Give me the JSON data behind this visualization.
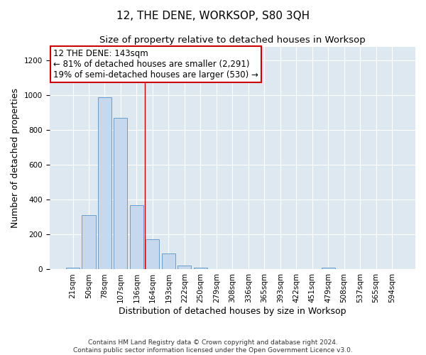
{
  "title": "12, THE DENE, WORKSOP, S80 3QH",
  "subtitle": "Size of property relative to detached houses in Worksop",
  "xlabel": "Distribution of detached houses by size in Worksop",
  "ylabel": "Number of detached properties",
  "categories": [
    "21sqm",
    "50sqm",
    "78sqm",
    "107sqm",
    "136sqm",
    "164sqm",
    "193sqm",
    "222sqm",
    "250sqm",
    "279sqm",
    "308sqm",
    "336sqm",
    "365sqm",
    "393sqm",
    "422sqm",
    "451sqm",
    "479sqm",
    "508sqm",
    "537sqm",
    "565sqm",
    "594sqm"
  ],
  "values": [
    10,
    310,
    990,
    870,
    370,
    175,
    90,
    22,
    10,
    0,
    0,
    0,
    0,
    0,
    0,
    0,
    10,
    0,
    0,
    0,
    0
  ],
  "bar_color": "#c5d8ee",
  "bar_edge_color": "#6a9dc8",
  "vline_x_index": 4.5,
  "vline_color": "#cc0000",
  "annotation_title": "12 THE DENE: 143sqm",
  "annotation_line1": "← 81% of detached houses are smaller (2,291)",
  "annotation_line2": "19% of semi-detached houses are larger (530) →",
  "annotation_box_color": "#ffffff",
  "annotation_box_edge_color": "#cc0000",
  "ylim": [
    0,
    1280
  ],
  "yticks": [
    0,
    200,
    400,
    600,
    800,
    1000,
    1200
  ],
  "background_color": "#dde8f0",
  "footer_line1": "Contains HM Land Registry data © Crown copyright and database right 2024.",
  "footer_line2": "Contains public sector information licensed under the Open Government Licence v3.0.",
  "title_fontsize": 11,
  "subtitle_fontsize": 9.5,
  "tick_fontsize": 7.5,
  "ylabel_fontsize": 9,
  "xlabel_fontsize": 9,
  "annotation_fontsize": 8.5
}
